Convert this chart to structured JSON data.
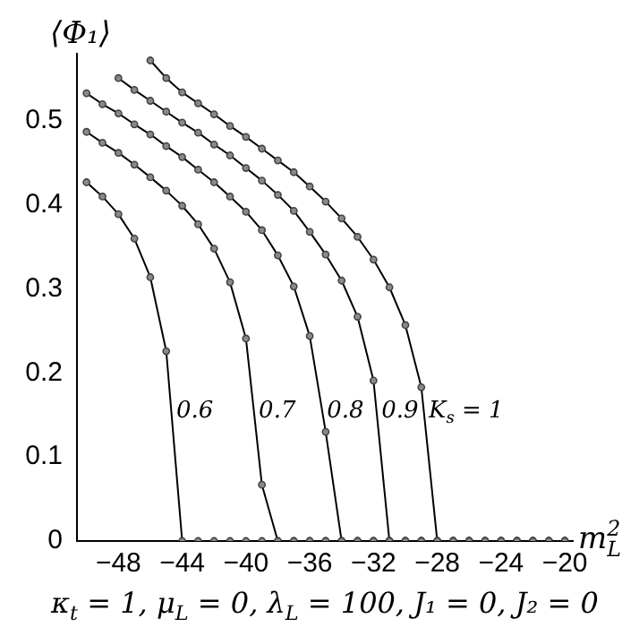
{
  "chart_data": {
    "type": "line",
    "xlabel": "m$^{2}$$_{L}$",
    "ylabel": "⟨Φ₁⟩",
    "annotations": [
      "κ$_{t}$ = 1, μ$_{L}$ = 0, λ$_{L}$ = 100, J₁ = 0, J₂ = 0"
    ],
    "xlim": [
      -50.6,
      -19.5
    ],
    "ylim": [
      0,
      0.58
    ],
    "xticks": [
      -48,
      -44,
      -40,
      -36,
      -32,
      -28,
      -24,
      -20
    ],
    "yticks": [
      0,
      0.1,
      0.2,
      0.3,
      0.4,
      0.5
    ],
    "grid": false,
    "legend": false,
    "marker": "circle",
    "line_style": "solid",
    "series": [
      {
        "name": "0.6",
        "color": "#000000",
        "x": [
          -50,
          -49,
          -48,
          -47,
          -46,
          -45,
          -44,
          -43,
          -42,
          -41,
          -40,
          -39,
          -38,
          -37,
          -36,
          -35,
          -34,
          -33,
          -32,
          -31,
          -30,
          -29,
          -28,
          -27,
          -26,
          -25,
          -24,
          -23,
          -22,
          -21,
          -20
        ],
        "values": [
          0.427,
          0.41,
          0.389,
          0.36,
          0.314,
          0.226,
          0,
          0,
          0,
          0,
          0,
          0,
          0,
          0,
          0,
          0,
          0,
          0,
          0,
          0,
          0,
          0,
          0,
          0,
          0,
          0,
          0,
          0,
          0,
          0,
          0
        ]
      },
      {
        "name": "0.7",
        "color": "#000000",
        "x": [
          -50,
          -49,
          -48,
          -47,
          -46,
          -45,
          -44,
          -43,
          -42,
          -41,
          -40,
          -39,
          -38,
          -37,
          -36,
          -35,
          -34,
          -33,
          -32,
          -31,
          -30,
          -29,
          -28,
          -27,
          -26,
          -25,
          -24,
          -23,
          -22,
          -21,
          -20
        ],
        "values": [
          0.487,
          0.474,
          0.462,
          0.448,
          0.433,
          0.417,
          0.399,
          0.377,
          0.348,
          0.308,
          0.241,
          0.067,
          0,
          0,
          0,
          0,
          0,
          0,
          0,
          0,
          0,
          0,
          0,
          0,
          0,
          0,
          0,
          0,
          0,
          0,
          0
        ]
      },
      {
        "name": "0.8",
        "color": "#000000",
        "x": [
          -50,
          -49,
          -48,
          -47,
          -46,
          -45,
          -44,
          -43,
          -42,
          -41,
          -40,
          -39,
          -38,
          -37,
          -36,
          -35,
          -34,
          -33,
          -32,
          -31,
          -30,
          -29,
          -28,
          -27,
          -26,
          -25,
          -24,
          -23,
          -22,
          -21,
          -20
        ],
        "values": [
          0.533,
          0.52,
          0.509,
          0.496,
          0.484,
          0.47,
          0.457,
          0.442,
          0.427,
          0.41,
          0.392,
          0.37,
          0.34,
          0.303,
          0.244,
          0.13,
          0,
          0,
          0,
          0,
          0,
          0,
          0,
          0,
          0,
          0,
          0,
          0,
          0,
          0,
          0
        ]
      },
      {
        "name": "0.9",
        "color": "#000000",
        "x": [
          -48,
          -47,
          -46,
          -45,
          -44,
          -43,
          -42,
          -41,
          -40,
          -39,
          -38,
          -37,
          -36,
          -35,
          -34,
          -33,
          -32,
          -31,
          -30,
          -29,
          -28,
          -27,
          -26,
          -25,
          -24,
          -23,
          -22,
          -21,
          -20
        ],
        "values": [
          0.551,
          0.537,
          0.524,
          0.511,
          0.498,
          0.486,
          0.472,
          0.459,
          0.444,
          0.429,
          0.412,
          0.393,
          0.368,
          0.341,
          0.31,
          0.267,
          0.191,
          0,
          0,
          0,
          0,
          0,
          0,
          0,
          0,
          0,
          0,
          0,
          0
        ]
      },
      {
        "name": "K$_{s}$ = 1",
        "color": "#000000",
        "x": [
          -46,
          -45,
          -44,
          -43,
          -42,
          -41,
          -40,
          -39,
          -38,
          -37,
          -36,
          -35,
          -34,
          -33,
          -32,
          -31,
          -30,
          -29,
          -28,
          -27,
          -26,
          -25,
          -24,
          -23,
          -22,
          -21,
          -20
        ],
        "values": [
          0.572,
          0.551,
          0.534,
          0.521,
          0.508,
          0.494,
          0.481,
          0.467,
          0.453,
          0.439,
          0.422,
          0.404,
          0.384,
          0.362,
          0.335,
          0.302,
          0.257,
          0.183,
          0,
          0,
          0,
          0,
          0,
          0,
          0,
          0,
          0
        ]
      }
    ]
  }
}
